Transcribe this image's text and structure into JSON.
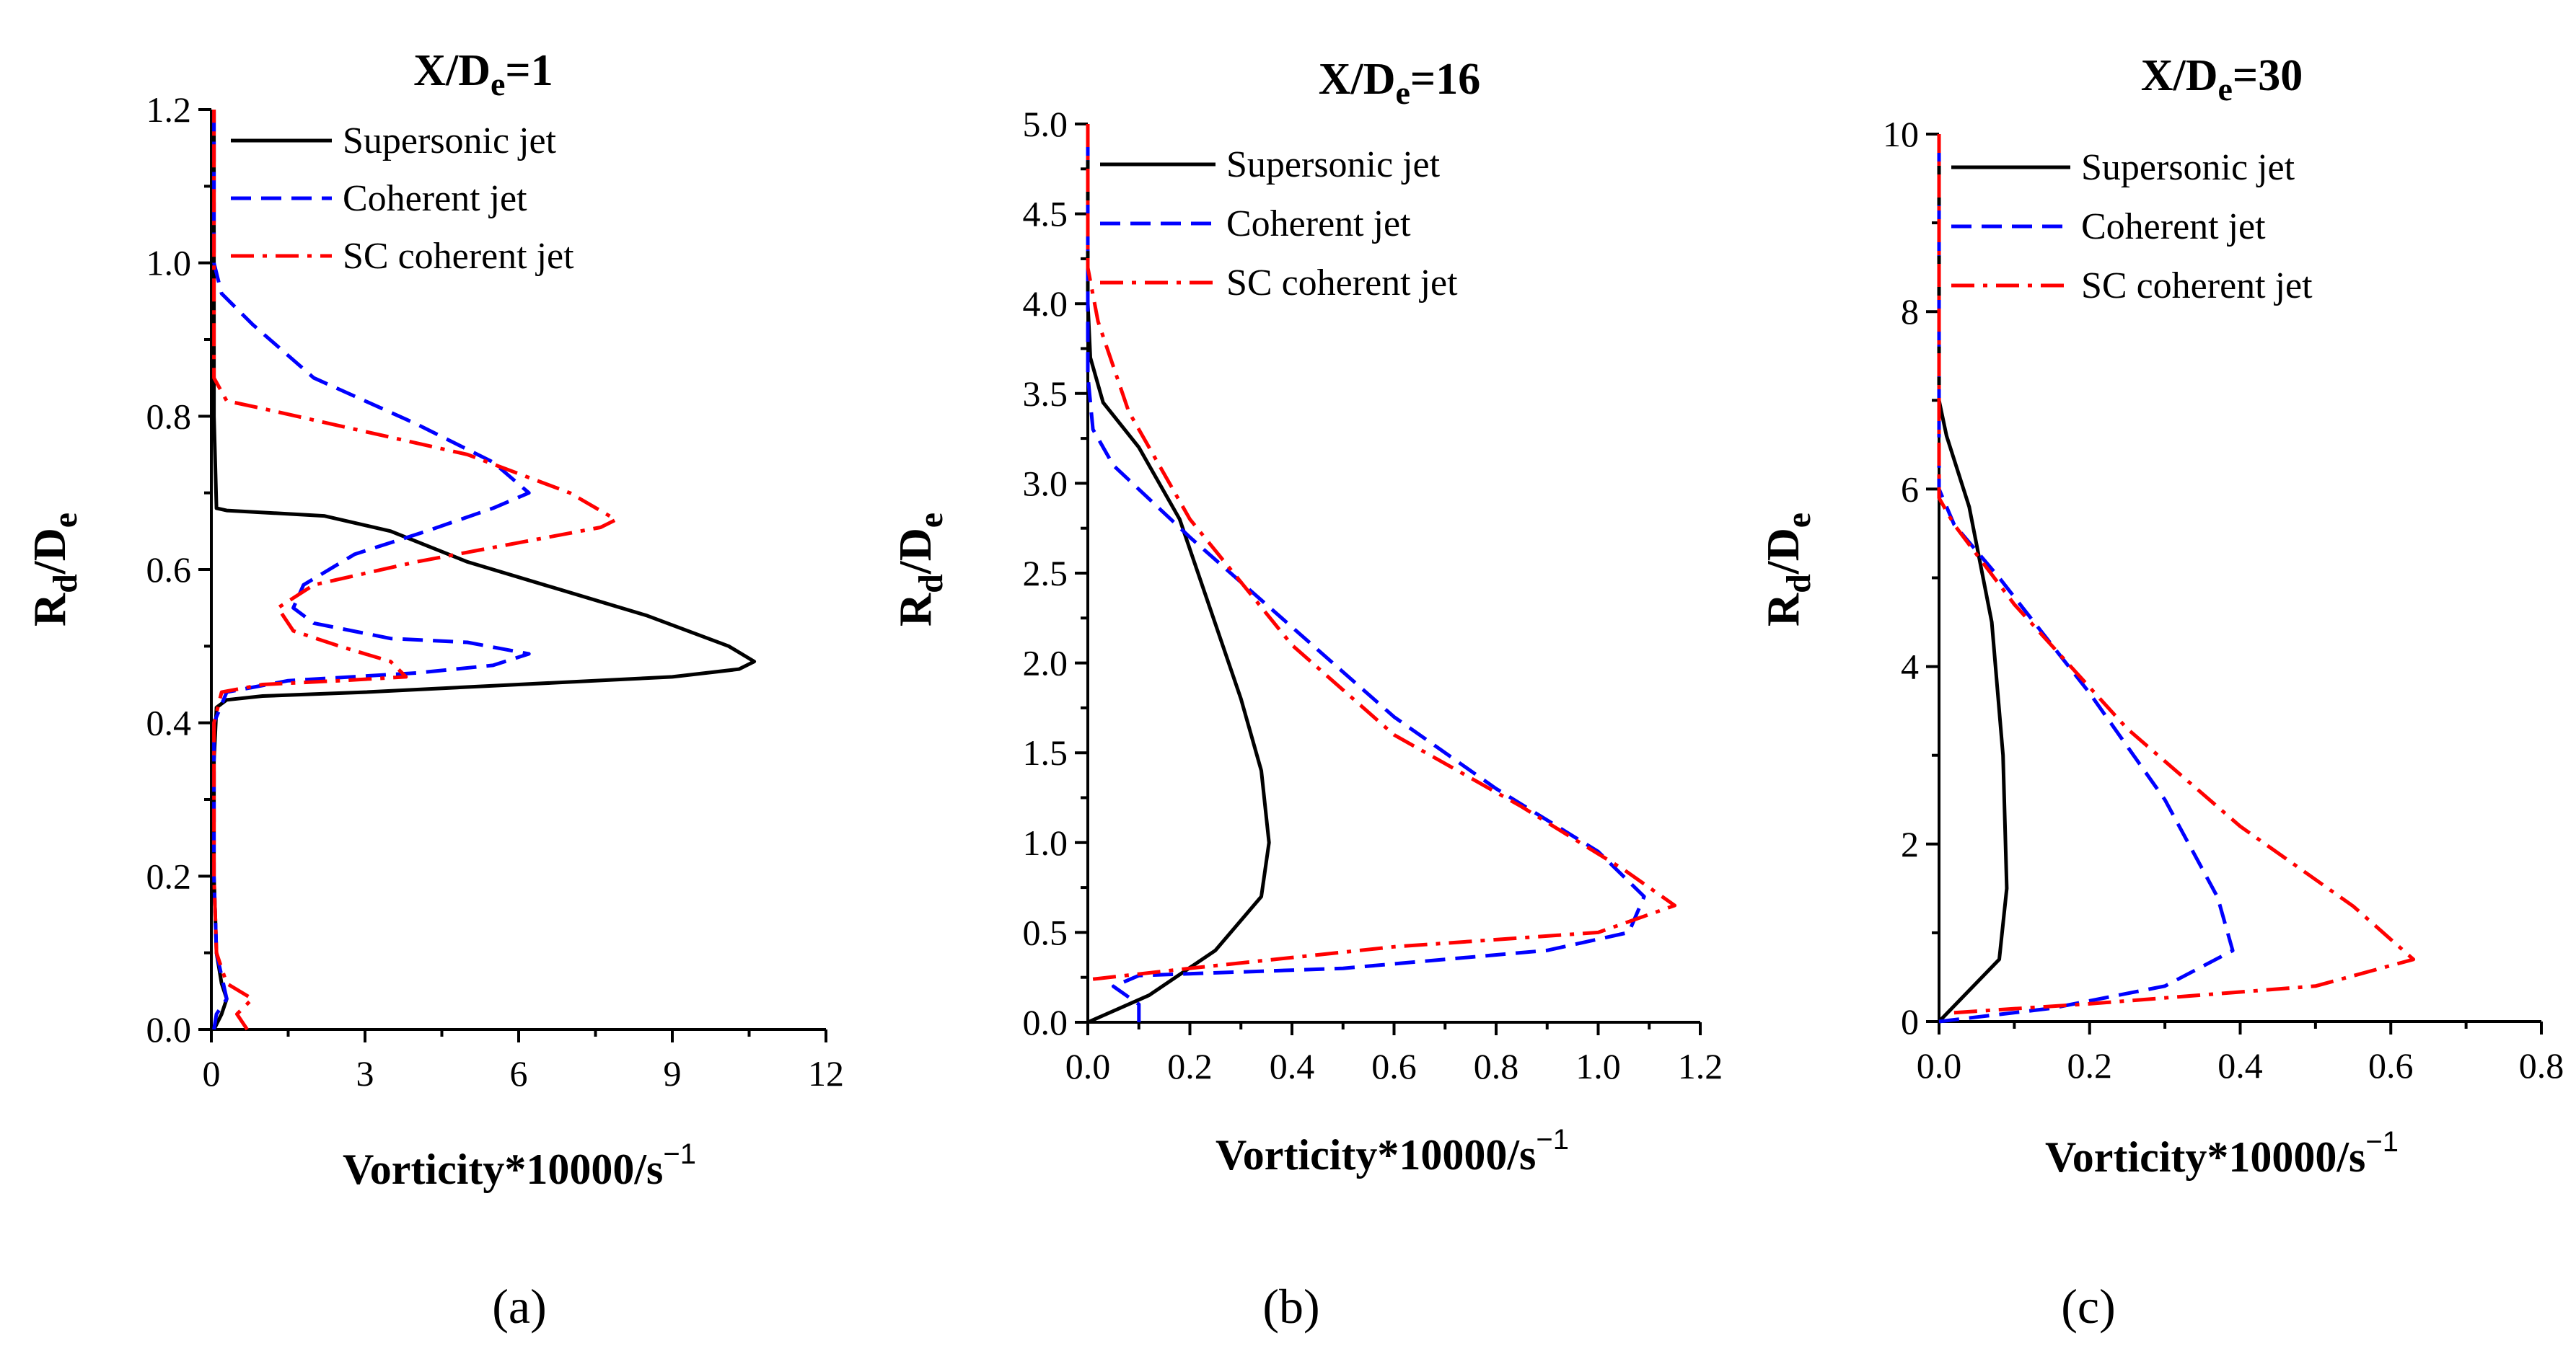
{
  "chart_data": [
    {
      "type": "line",
      "panel_label": "(a)",
      "title": "X/De=1",
      "title_main": "X/D",
      "title_sub": "e",
      "title_tail": "=1",
      "xlabel": "Vorticity*10000/s−1",
      "xlabel_main": "Vorticity*10000/s",
      "xlabel_sup": "−1",
      "ylabel": "Rd/De",
      "ylabel_parts": [
        "R",
        "d",
        "/D",
        "e"
      ],
      "xlim": [
        0,
        12
      ],
      "ylim": [
        0,
        1.2
      ],
      "xticks": [
        "0",
        "3",
        "6",
        "9",
        "12"
      ],
      "yticks": [
        "0.0",
        "0.2",
        "0.4",
        "0.6",
        "0.8",
        "1.0",
        "1.2"
      ],
      "legend_position": "top-right",
      "series": [
        {
          "name": "Supersonic jet",
          "color": "#000000",
          "dash": "solid",
          "points": [
            [
              0.05,
              0
            ],
            [
              0.2,
              0.02
            ],
            [
              0.3,
              0.04
            ],
            [
              0.2,
              0.06
            ],
            [
              0.1,
              0.1
            ],
            [
              0.05,
              0.2
            ],
            [
              0.05,
              0.35
            ],
            [
              0.1,
              0.42
            ],
            [
              0.3,
              0.43
            ],
            [
              1,
              0.435
            ],
            [
              3,
              0.44
            ],
            [
              6,
              0.45
            ],
            [
              9,
              0.46
            ],
            [
              10.3,
              0.47
            ],
            [
              10.6,
              0.48
            ],
            [
              10.1,
              0.5
            ],
            [
              8.5,
              0.54
            ],
            [
              6.5,
              0.58
            ],
            [
              5,
              0.61
            ],
            [
              3.5,
              0.65
            ],
            [
              2.2,
              0.67
            ],
            [
              0.3,
              0.677
            ],
            [
              0.1,
              0.68
            ],
            [
              0.05,
              0.8
            ],
            [
              0.05,
              1.2
            ]
          ]
        },
        {
          "name": "Coherent jet",
          "color": "#0000ff",
          "dash": "dashed",
          "points": [
            [
              0.05,
              0
            ],
            [
              0.1,
              0.02
            ],
            [
              0.3,
              0.04
            ],
            [
              0.2,
              0.07
            ],
            [
              0.1,
              0.1
            ],
            [
              0.05,
              0.2
            ],
            [
              0.05,
              0.4
            ],
            [
              0.3,
              0.44
            ],
            [
              1.5,
              0.455
            ],
            [
              4,
              0.465
            ],
            [
              5.5,
              0.475
            ],
            [
              6.2,
              0.49
            ],
            [
              5,
              0.505
            ],
            [
              3.5,
              0.51
            ],
            [
              2,
              0.53
            ],
            [
              1.6,
              0.55
            ],
            [
              1.8,
              0.58
            ],
            [
              2.8,
              0.62
            ],
            [
              4.2,
              0.65
            ],
            [
              5.5,
              0.68
            ],
            [
              6.2,
              0.7
            ],
            [
              5.5,
              0.74
            ],
            [
              4,
              0.79
            ],
            [
              2,
              0.85
            ],
            [
              0.8,
              0.92
            ],
            [
              0.2,
              0.96
            ],
            [
              0.05,
              1.0
            ],
            [
              0.05,
              1.2
            ]
          ]
        },
        {
          "name": "SC coherent jet",
          "color": "#ff0000",
          "dash": "dashdot",
          "points": [
            [
              0.7,
              0
            ],
            [
              0.5,
              0.02
            ],
            [
              0.8,
              0.04
            ],
            [
              0.3,
              0.06
            ],
            [
              0.1,
              0.1
            ],
            [
              0.05,
              0.2
            ],
            [
              0.05,
              0.4
            ],
            [
              0.2,
              0.44
            ],
            [
              1,
              0.45
            ],
            [
              2.5,
              0.455
            ],
            [
              3.8,
              0.46
            ],
            [
              3.5,
              0.48
            ],
            [
              2.5,
              0.5
            ],
            [
              1.6,
              0.52
            ],
            [
              1.3,
              0.55
            ],
            [
              2,
              0.58
            ],
            [
              4,
              0.61
            ],
            [
              6,
              0.635
            ],
            [
              7.6,
              0.655
            ],
            [
              7.9,
              0.665
            ],
            [
              7,
              0.7
            ],
            [
              5,
              0.75
            ],
            [
              3,
              0.78
            ],
            [
              1,
              0.81
            ],
            [
              0.3,
              0.82
            ],
            [
              0.05,
              0.85
            ],
            [
              0.05,
              1.2
            ]
          ]
        }
      ]
    },
    {
      "type": "line",
      "panel_label": "(b)",
      "title": "X/De=16",
      "title_main": "X/D",
      "title_sub": "e",
      "title_tail": "=16",
      "xlabel": "Vorticity*10000/s−1",
      "xlabel_main": "Vorticity*10000/s",
      "xlabel_sup": "−1",
      "ylabel": "Rd/De",
      "ylabel_parts": [
        "R",
        "d",
        "/D",
        "e"
      ],
      "xlim": [
        0,
        1.2
      ],
      "ylim": [
        0,
        5.0
      ],
      "xticks": [
        "0.0",
        "0.2",
        "0.4",
        "0.6",
        "0.8",
        "1.0",
        "1.2"
      ],
      "yticks": [
        "0.0",
        "0.5",
        "1.0",
        "1.5",
        "2.0",
        "2.5",
        "3.0",
        "3.5",
        "4.0",
        "4.5",
        "5.0"
      ],
      "legend_position": "top-right",
      "series": [
        {
          "name": "Supersonic jet",
          "color": "#000000",
          "dash": "solid",
          "points": [
            [
              0,
              0
            ],
            [
              0.12,
              0.15
            ],
            [
              0.25,
              0.4
            ],
            [
              0.34,
              0.7
            ],
            [
              0.355,
              1.0
            ],
            [
              0.34,
              1.4
            ],
            [
              0.3,
              1.8
            ],
            [
              0.24,
              2.3
            ],
            [
              0.18,
              2.8
            ],
            [
              0.1,
              3.2
            ],
            [
              0.03,
              3.45
            ],
            [
              0.005,
              3.7
            ],
            [
              0,
              4.0
            ],
            [
              0,
              5.0
            ]
          ]
        },
        {
          "name": "Coherent jet",
          "color": "#0000ff",
          "dash": "dashed",
          "points": [
            [
              0.1,
              0
            ],
            [
              0.1,
              0.1
            ],
            [
              0.05,
              0.2
            ],
            [
              0.1,
              0.26
            ],
            [
              0.5,
              0.3
            ],
            [
              0.9,
              0.4
            ],
            [
              1.06,
              0.5
            ],
            [
              1.09,
              0.7
            ],
            [
              1.0,
              0.95
            ],
            [
              0.8,
              1.3
            ],
            [
              0.6,
              1.7
            ],
            [
              0.4,
              2.2
            ],
            [
              0.2,
              2.7
            ],
            [
              0.05,
              3.1
            ],
            [
              0.01,
              3.3
            ],
            [
              0,
              3.6
            ],
            [
              0,
              5.0
            ]
          ]
        },
        {
          "name": "SC coherent jet",
          "color": "#ff0000",
          "dash": "dashdot",
          "points": [
            [
              0.01,
              0.24
            ],
            [
              0.2,
              0.3
            ],
            [
              0.6,
              0.42
            ],
            [
              1.0,
              0.5
            ],
            [
              1.15,
              0.65
            ],
            [
              1.05,
              0.85
            ],
            [
              0.85,
              1.2
            ],
            [
              0.6,
              1.6
            ],
            [
              0.4,
              2.1
            ],
            [
              0.2,
              2.8
            ],
            [
              0.08,
              3.4
            ],
            [
              0.02,
              3.9
            ],
            [
              0,
              4.2
            ],
            [
              0,
              5.0
            ]
          ]
        }
      ]
    },
    {
      "type": "line",
      "panel_label": "(c)",
      "title": "X/De=30",
      "title_main": "X/D",
      "title_sub": "e",
      "title_tail": "=30",
      "xlabel": "Vorticity*10000/s−1",
      "xlabel_main": "Vorticity*10000/s",
      "xlabel_sup": "−1",
      "ylabel": "Rd/De",
      "ylabel_parts": [
        "R",
        "d",
        "/D",
        "e"
      ],
      "xlim": [
        0,
        0.8
      ],
      "ylim": [
        0,
        10
      ],
      "xticks": [
        "0.0",
        "0.2",
        "0.4",
        "0.6",
        "0.8"
      ],
      "yticks": [
        "0",
        "2",
        "4",
        "6",
        "8",
        "10"
      ],
      "legend_position": "top-right",
      "series": [
        {
          "name": "Supersonic jet",
          "color": "#000000",
          "dash": "solid",
          "points": [
            [
              0,
              0
            ],
            [
              0.08,
              0.7
            ],
            [
              0.09,
              1.5
            ],
            [
              0.085,
              3
            ],
            [
              0.07,
              4.5
            ],
            [
              0.04,
              5.8
            ],
            [
              0.01,
              6.6
            ],
            [
              0,
              7.0
            ],
            [
              0,
              10
            ]
          ]
        },
        {
          "name": "Coherent jet",
          "color": "#0000ff",
          "dash": "dashed",
          "points": [
            [
              0,
              0
            ],
            [
              0.05,
              0.05
            ],
            [
              0.15,
              0.15
            ],
            [
              0.3,
              0.4
            ],
            [
              0.39,
              0.8
            ],
            [
              0.37,
              1.4
            ],
            [
              0.3,
              2.5
            ],
            [
              0.2,
              3.7
            ],
            [
              0.08,
              5
            ],
            [
              0.02,
              5.6
            ],
            [
              0,
              6.0
            ],
            [
              0,
              10
            ]
          ]
        },
        {
          "name": "SC coherent jet",
          "color": "#ff0000",
          "dash": "dashdot",
          "points": [
            [
              0.02,
              0.1
            ],
            [
              0.2,
              0.2
            ],
            [
              0.5,
              0.4
            ],
            [
              0.63,
              0.7
            ],
            [
              0.55,
              1.3
            ],
            [
              0.4,
              2.2
            ],
            [
              0.25,
              3.3
            ],
            [
              0.1,
              4.7
            ],
            [
              0.02,
              5.6
            ],
            [
              0,
              5.9
            ],
            [
              0,
              10
            ]
          ]
        }
      ]
    }
  ]
}
